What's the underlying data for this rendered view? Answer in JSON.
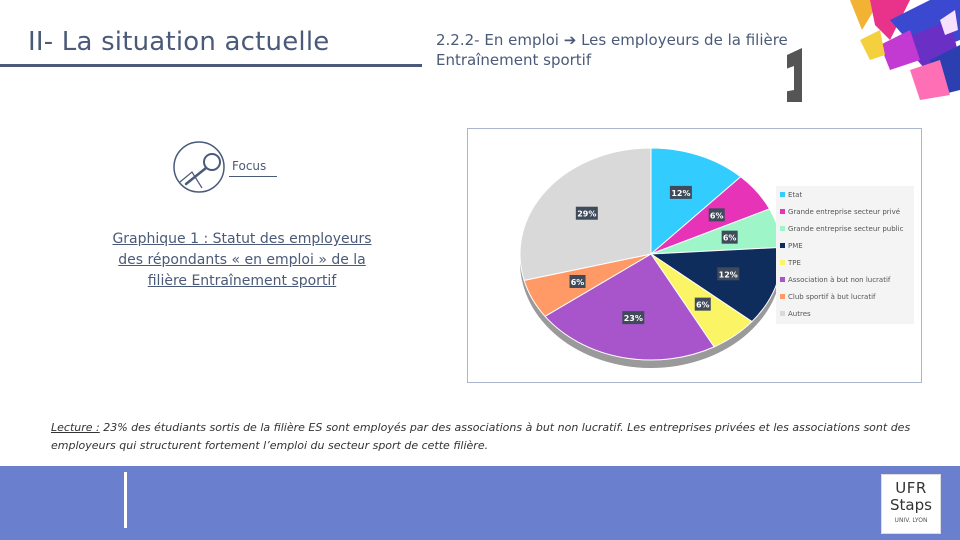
{
  "header": {
    "section_title": "II- La situation actuelle",
    "subtitle_line1": "2.2.2- En emploi ➔ Les employeurs de la filière",
    "subtitle_line2": "Entraînement sportif"
  },
  "focus": {
    "label": "Focus"
  },
  "graph_caption": {
    "line1": "Graphique 1 : Statut des employeurs",
    "line2": "des répondants « en emploi » de la",
    "line3": "filière Entraînement sportif"
  },
  "chart_data": {
    "type": "pie",
    "categories": [
      "Etat",
      "Grande entreprise secteur privé",
      "Grande entreprise secteur public",
      "PME",
      "TPE",
      "Association à but non lucratif",
      "Club sportif à but lucratif",
      "Autres"
    ],
    "values": [
      12,
      6,
      6,
      12,
      6,
      23,
      6,
      29
    ],
    "data_labels": [
      "12%",
      "6%",
      "6%",
      "12%",
      "6%",
      "23%",
      "6%",
      "29%"
    ],
    "legend_placement": "right",
    "colors": [
      "#33ccff",
      "#e633b8",
      "#9ef5c8",
      "#0f2d5c",
      "#fbf566",
      "#a855cc",
      "#ff9966",
      "#d9d9d9"
    ]
  },
  "lecture": {
    "prefix": "Lecture :",
    "line1_rest": " 23% des étudiants sortis de la filière ES sont employés par des associations à but non lucratif. Les entreprises privées et les associations sont des",
    "line2": "employeurs qui structurent fortement l’emploi du secteur sport de cette filière."
  },
  "logo": {
    "line1": "UFR",
    "line2": "Staps",
    "line3": "UNIV. LYON"
  }
}
